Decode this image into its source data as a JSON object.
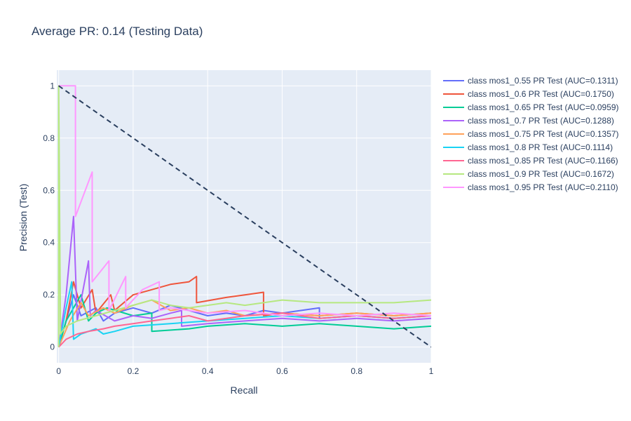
{
  "chart_data": {
    "type": "line",
    "title": "Average PR: 0.14 (Testing Data)",
    "xlabel": "Recall",
    "ylabel": "Precision (Test)",
    "xlim": [
      -0.005,
      1.0
    ],
    "ylim": [
      -0.06,
      1.06
    ],
    "xticks": [
      0,
      0.2,
      0.4,
      0.6,
      0.8,
      1
    ],
    "xtick_labels": [
      "0",
      "0.2",
      "0.4",
      "0.6",
      "0.8",
      "1"
    ],
    "yticks": [
      0,
      0.2,
      0.4,
      0.6,
      0.8,
      1
    ],
    "ytick_labels": [
      "0",
      "0.2",
      "0.4",
      "0.6",
      "0.8",
      "1"
    ],
    "grid": true,
    "legend_position": "right",
    "background_color": "#e5ecf6",
    "reference_line": {
      "x": [
        0,
        1
      ],
      "y": [
        1,
        0
      ],
      "style": "dashed",
      "color": "#2a3f5f"
    },
    "series": [
      {
        "name": "class mos1_0.55 PR Test (AUC=0.1311)",
        "color": "#636efa",
        "x": [
          0,
          0.02,
          0.04,
          0.06,
          0.1,
          0.12,
          0.15,
          0.2,
          0.25,
          0.3,
          0.35,
          0.4,
          0.45,
          0.5,
          0.55,
          0.6,
          0.65,
          0.7,
          0.7,
          0.8,
          0.9,
          1.0
        ],
        "y": [
          0,
          0.1,
          0.2,
          0.12,
          0.15,
          0.1,
          0.13,
          0.15,
          0.13,
          0.16,
          0.14,
          0.12,
          0.13,
          0.12,
          0.14,
          0.13,
          0.14,
          0.15,
          0.11,
          0.12,
          0.11,
          0.12
        ]
      },
      {
        "name": "class mos1_0.6 PR Test (AUC=0.1750)",
        "color": "#ef553b",
        "x": [
          0,
          0.02,
          0.04,
          0.06,
          0.09,
          0.1,
          0.14,
          0.15,
          0.2,
          0.25,
          0.3,
          0.35,
          0.37,
          0.37,
          0.45,
          0.5,
          0.55,
          0.55,
          0.6,
          0.7,
          0.8,
          0.9,
          1.0
        ],
        "y": [
          0,
          0.1,
          0.25,
          0.15,
          0.22,
          0.13,
          0.2,
          0.14,
          0.2,
          0.22,
          0.24,
          0.25,
          0.27,
          0.17,
          0.19,
          0.2,
          0.21,
          0.12,
          0.13,
          0.12,
          0.13,
          0.12,
          0.13
        ]
      },
      {
        "name": "class mos1_0.65 PR Test (AUC=0.0959)",
        "color": "#00cc96",
        "x": [
          0,
          0.02,
          0.04,
          0.06,
          0.08,
          0.1,
          0.13,
          0.2,
          0.25,
          0.25,
          0.35,
          0.4,
          0.5,
          0.6,
          0.7,
          0.8,
          0.9,
          1.0
        ],
        "y": [
          0,
          0.1,
          0.15,
          0.2,
          0.1,
          0.13,
          0.15,
          0.12,
          0.13,
          0.06,
          0.07,
          0.08,
          0.09,
          0.08,
          0.09,
          0.08,
          0.07,
          0.08
        ]
      },
      {
        "name": "class mos1_0.7 PR Test (AUC=0.1288)",
        "color": "#ab63fa",
        "x": [
          0,
          0.02,
          0.04,
          0.05,
          0.08,
          0.085,
          0.1,
          0.15,
          0.2,
          0.25,
          0.3,
          0.33,
          0.33,
          0.4,
          0.5,
          0.6,
          0.7,
          0.8,
          0.9,
          1.0
        ],
        "y": [
          0,
          0.2,
          0.5,
          0.1,
          0.33,
          0.12,
          0.14,
          0.1,
          0.12,
          0.11,
          0.13,
          0.14,
          0.08,
          0.09,
          0.1,
          0.11,
          0.1,
          0.11,
          0.1,
          0.11
        ]
      },
      {
        "name": "class mos1_0.75 PR Test (AUC=0.1357)",
        "color": "#ffa15a",
        "x": [
          0,
          0.03,
          0.06,
          0.08,
          0.12,
          0.15,
          0.2,
          0.25,
          0.3,
          0.35,
          0.4,
          0.45,
          0.5,
          0.6,
          0.7,
          0.8,
          0.9,
          1.0
        ],
        "y": [
          0,
          0.1,
          0.17,
          0.12,
          0.15,
          0.13,
          0.16,
          0.18,
          0.14,
          0.15,
          0.13,
          0.14,
          0.12,
          0.13,
          0.12,
          0.13,
          0.12,
          0.13
        ]
      },
      {
        "name": "class mos1_0.8 PR Test (AUC=0.1114)",
        "color": "#19d3f3",
        "x": [
          0,
          0.02,
          0.035,
          0.04,
          0.06,
          0.08,
          0.1,
          0.12,
          0.15,
          0.2,
          0.3,
          0.4,
          0.5,
          0.6,
          0.7,
          0.8,
          0.9,
          1.0
        ],
        "y": [
          0,
          0.15,
          0.25,
          0.03,
          0.05,
          0.06,
          0.07,
          0.05,
          0.06,
          0.08,
          0.09,
          0.1,
          0.11,
          0.12,
          0.11,
          0.12,
          0.11,
          0.12
        ]
      },
      {
        "name": "class mos1_0.85 PR Test (AUC=0.1166)",
        "color": "#ff6692",
        "x": [
          0,
          0.02,
          0.05,
          0.08,
          0.12,
          0.15,
          0.2,
          0.25,
          0.3,
          0.35,
          0.4,
          0.45,
          0.5,
          0.6,
          0.7,
          0.8,
          0.9,
          1.0
        ],
        "y": [
          0,
          0.03,
          0.05,
          0.06,
          0.07,
          0.08,
          0.09,
          0.1,
          0.11,
          0.12,
          0.1,
          0.11,
          0.12,
          0.13,
          0.11,
          0.12,
          0.11,
          0.12
        ]
      },
      {
        "name": "class mos1_0.9 PR Test (AUC=0.1672)",
        "color": "#b6e880",
        "x": [
          0,
          0,
          0.005,
          0.02,
          0.05,
          0.1,
          0.15,
          0.2,
          0.25,
          0.3,
          0.35,
          0.4,
          0.45,
          0.5,
          0.55,
          0.6,
          0.7,
          0.8,
          0.9,
          1.0
        ],
        "y": [
          0,
          1,
          0.05,
          0.08,
          0.1,
          0.12,
          0.14,
          0.16,
          0.18,
          0.16,
          0.15,
          0.16,
          0.17,
          0.16,
          0.17,
          0.18,
          0.17,
          0.17,
          0.17,
          0.18
        ]
      },
      {
        "name": "class mos1_0.95 PR Test (AUC=0.2110)",
        "color": "#ff97ff",
        "x": [
          0,
          0.045,
          0.045,
          0.09,
          0.09,
          0.135,
          0.135,
          0.18,
          0.18,
          0.225,
          0.27,
          0.27,
          0.3,
          0.4,
          0.5,
          0.6,
          0.7,
          0.8,
          0.9,
          1.0
        ],
        "y": [
          1,
          1,
          0.5,
          0.67,
          0.25,
          0.33,
          0.14,
          0.27,
          0.15,
          0.22,
          0.25,
          0.14,
          0.15,
          0.13,
          0.14,
          0.12,
          0.13,
          0.12,
          0.13,
          0.12
        ]
      }
    ]
  }
}
